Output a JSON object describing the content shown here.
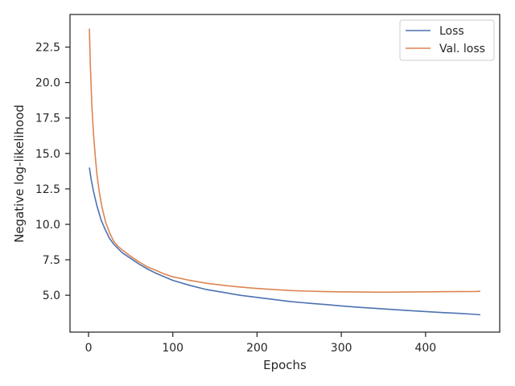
{
  "chart_data": {
    "type": "line",
    "title": "",
    "xlabel": "Epochs",
    "ylabel": "Negative log-likelihood",
    "xlim": [
      -22,
      488
    ],
    "ylim": [
      2.4,
      24.8
    ],
    "xticks": [
      0,
      100,
      200,
      300,
      400
    ],
    "xtick_labels": [
      "0",
      "100",
      "200",
      "300",
      "400"
    ],
    "yticks": [
      5.0,
      7.5,
      10.0,
      12.5,
      15.0,
      17.5,
      20.0,
      22.5
    ],
    "ytick_labels": [
      "5.0",
      "7.5",
      "10.0",
      "12.5",
      "15.0",
      "17.5",
      "20.0",
      "22.5"
    ],
    "grid": false,
    "legend_position": "upper right",
    "series": [
      {
        "name": "Loss",
        "color": "#4c72b0",
        "x": [
          1,
          3,
          6,
          10,
          15,
          20,
          25,
          30,
          40,
          50,
          60,
          70,
          80,
          90,
          100,
          120,
          140,
          160,
          180,
          200,
          220,
          240,
          260,
          280,
          300,
          320,
          340,
          360,
          380,
          400,
          420,
          440,
          460,
          465
        ],
        "y": [
          14.0,
          13.2,
          12.3,
          11.3,
          10.3,
          9.6,
          9.0,
          8.6,
          8.0,
          7.6,
          7.2,
          6.85,
          6.55,
          6.3,
          6.05,
          5.7,
          5.4,
          5.2,
          5.0,
          4.85,
          4.7,
          4.55,
          4.45,
          4.35,
          4.25,
          4.15,
          4.08,
          4.0,
          3.92,
          3.85,
          3.78,
          3.72,
          3.65,
          3.62
        ]
      },
      {
        "name": "Val. loss",
        "color": "#dd8452",
        "x": [
          1,
          2,
          3,
          4,
          6,
          8,
          10,
          13,
          16,
          20,
          25,
          30,
          35,
          40,
          50,
          60,
          70,
          80,
          90,
          100,
          120,
          140,
          160,
          180,
          200,
          220,
          240,
          260,
          280,
          300,
          320,
          340,
          360,
          380,
          400,
          420,
          440,
          460,
          465
        ],
        "y": [
          23.8,
          21.5,
          19.8,
          18.3,
          16.3,
          14.8,
          13.5,
          12.2,
          11.2,
          10.2,
          9.4,
          8.8,
          8.45,
          8.2,
          7.75,
          7.35,
          7.0,
          6.75,
          6.5,
          6.3,
          6.05,
          5.85,
          5.7,
          5.58,
          5.48,
          5.4,
          5.33,
          5.29,
          5.26,
          5.24,
          5.23,
          5.22,
          5.22,
          5.23,
          5.24,
          5.25,
          5.26,
          5.27,
          5.28
        ]
      }
    ]
  }
}
